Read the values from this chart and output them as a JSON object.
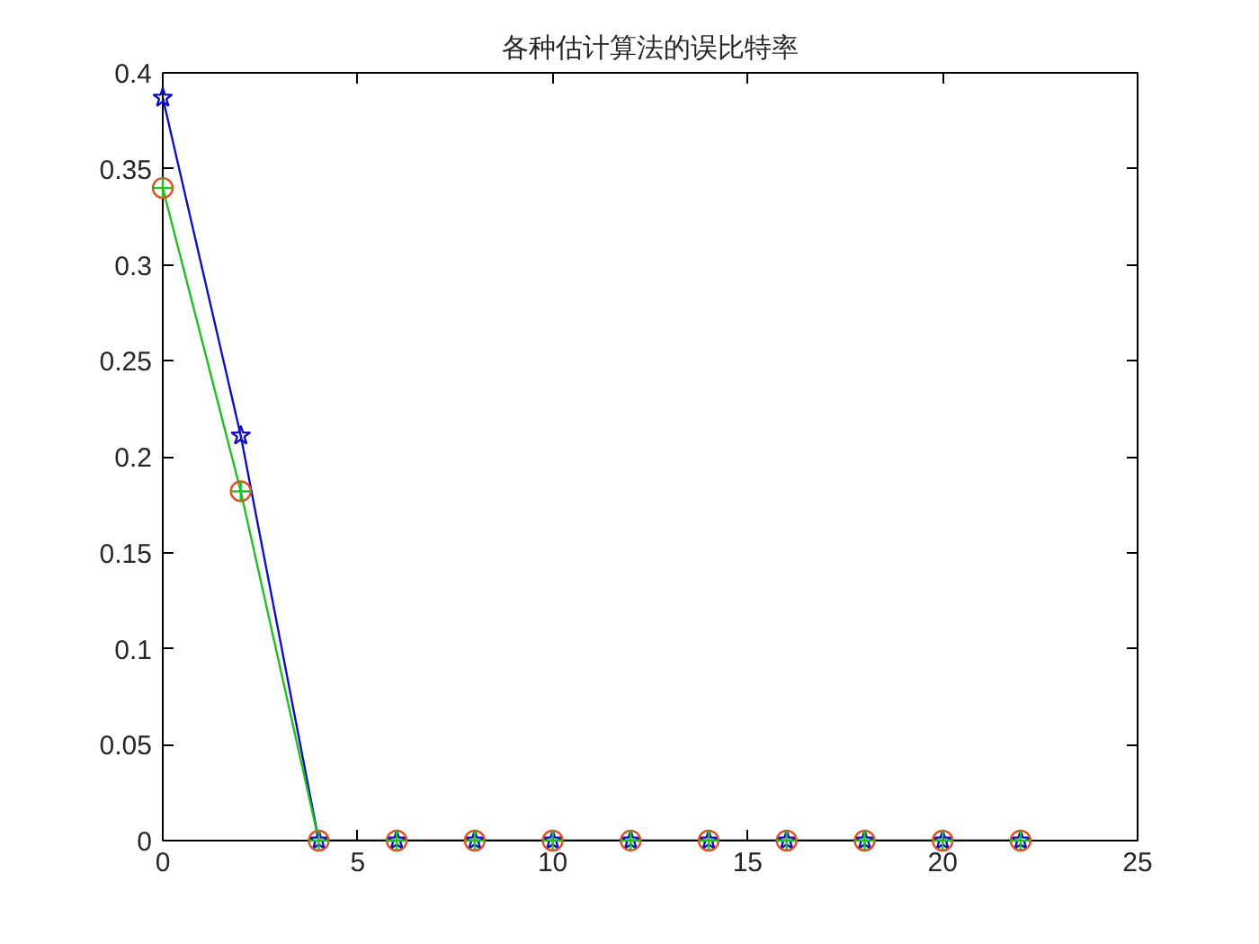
{
  "chart_data": {
    "type": "line",
    "title": "各种估计算法的误比特率",
    "x": [
      0,
      2,
      4,
      6,
      8,
      10,
      12,
      14,
      16,
      18,
      20,
      22
    ],
    "series": [
      {
        "color": "#1010c0",
        "marker": "star",
        "line_style": "solid",
        "values": [
          0.387,
          0.211,
          0,
          0,
          0,
          0,
          0,
          0,
          0,
          0,
          0,
          0
        ]
      },
      {
        "type": "scatter",
        "color": "#e05020",
        "marker": "circle",
        "values": [
          0.34,
          0.182,
          0,
          0,
          0,
          0,
          0,
          0,
          0,
          0,
          0,
          0
        ]
      },
      {
        "color": "#20c020",
        "marker": "cross",
        "line_style": "solid",
        "values": [
          0.34,
          0.182,
          0,
          0,
          0,
          0,
          0,
          0,
          0,
          0,
          0,
          0
        ]
      }
    ],
    "xlim": [
      0,
      25
    ],
    "ylim": [
      0,
      0.4
    ],
    "xticks": [
      0,
      5,
      10,
      15,
      20,
      25
    ],
    "yticks": [
      0,
      0.05,
      0.1,
      0.15,
      0.2,
      0.25,
      0.3,
      0.35,
      0.4
    ]
  }
}
